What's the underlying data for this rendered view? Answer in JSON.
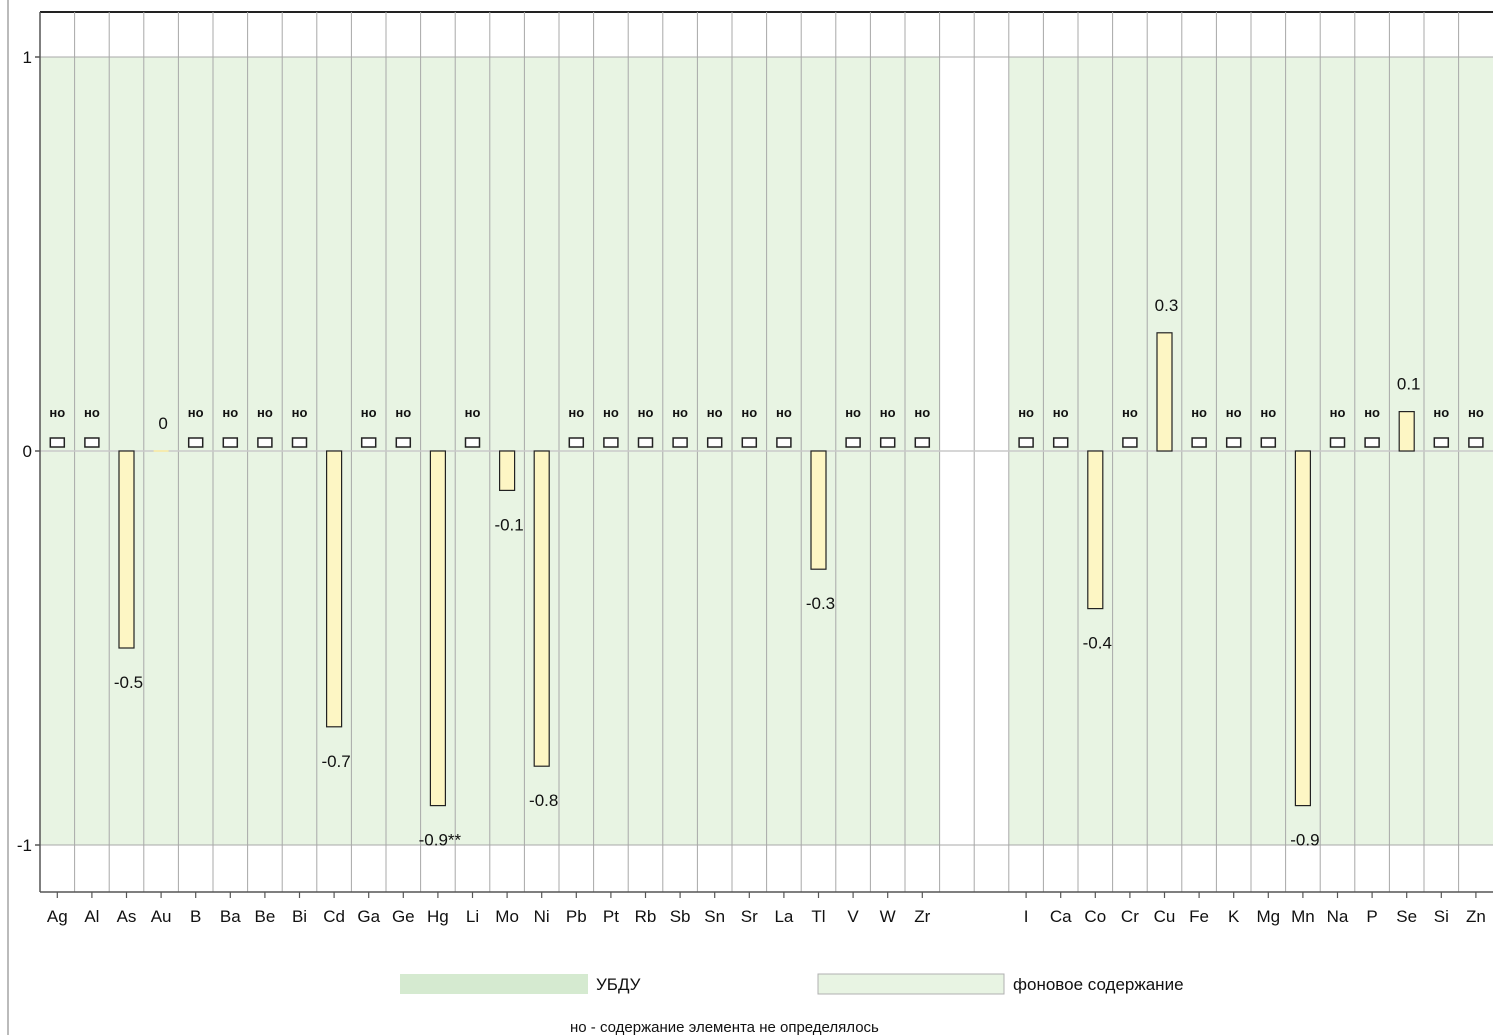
{
  "chart_data": {
    "type": "bar",
    "categories": [
      "Ag",
      "Al",
      "As",
      "Au",
      "B",
      "Ba",
      "Be",
      "Bi",
      "Cd",
      "Ga",
      "Ge",
      "Hg",
      "Li",
      "Mo",
      "Ni",
      "Pb",
      "Pt",
      "Rb",
      "Sb",
      "Sn",
      "Sr",
      "La",
      "Tl",
      "V",
      "W",
      "Zr",
      "",
      "",
      "I",
      "Ca",
      "Co",
      "Cr",
      "Cu",
      "Fe",
      "K",
      "Mg",
      "Mn",
      "Na",
      "P",
      "Se",
      "Si",
      "Zn"
    ],
    "values": [
      null,
      null,
      -0.5,
      0,
      null,
      null,
      null,
      null,
      -0.7,
      null,
      null,
      -0.9,
      null,
      -0.1,
      -0.8,
      null,
      null,
      null,
      null,
      null,
      null,
      null,
      -0.3,
      null,
      null,
      null,
      null,
      null,
      null,
      null,
      -0.4,
      null,
      0.3,
      null,
      null,
      null,
      -0.9,
      null,
      null,
      0.1,
      null,
      null
    ],
    "value_labels": [
      "но",
      "но",
      "-0.5",
      "0",
      "но",
      "но",
      "но",
      "но",
      "-0.7",
      "но",
      "но",
      "-0.9**",
      "но",
      "-0.1",
      "-0.8",
      "но",
      "но",
      "но",
      "но",
      "но",
      "но",
      "но",
      "-0.3",
      "но",
      "но",
      "но",
      "",
      "",
      "но",
      "но",
      "-0.4",
      "но",
      "0.3",
      "но",
      "но",
      "но",
      "-0.9",
      "но",
      "но",
      "0.1",
      "но",
      "но"
    ],
    "ylim": [
      -1.12,
      1.12
    ],
    "yticks": [
      1,
      0,
      -1
    ],
    "ytick_labels": [
      "1",
      "0",
      "-1"
    ],
    "background_band": [
      -1,
      1
    ],
    "band_gap_categories": [
      "",
      ""
    ],
    "legend": [
      {
        "label": "УБДУ",
        "color": "#d5ead0"
      },
      {
        "label": "фоновое содержание",
        "color": "#e8f4e3"
      }
    ],
    "legend_position": "bottom",
    "footnote": "но - содержание элемента не определялось",
    "not_determined_label": "но",
    "colors": {
      "bar_fill": "#fdf6c4",
      "band_fill": "#e8f4e3",
      "grid_line": "#a8a8a8",
      "axis_line": "#555555"
    }
  }
}
